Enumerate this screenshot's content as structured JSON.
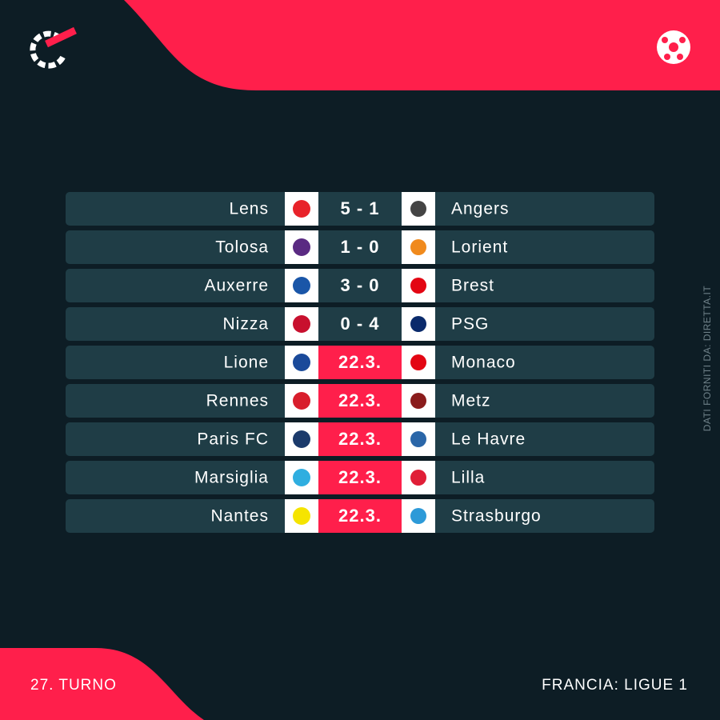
{
  "header": {
    "credit": "DATI FORNITI DA: DIRETTA.IT"
  },
  "matches": [
    {
      "home": "Lens",
      "score": "5 - 1",
      "away": "Angers"
    },
    {
      "home": "Tolosa",
      "score": "1 - 0",
      "away": "Lorient"
    },
    {
      "home": "Auxerre",
      "score": "3 - 0",
      "away": "Brest"
    },
    {
      "home": "Nizza",
      "score": "0 - 4",
      "away": "PSG"
    },
    {
      "home": "Lione",
      "date": "22.3.",
      "away": "Monaco"
    },
    {
      "home": "Rennes",
      "date": "22.3.",
      "away": "Metz"
    },
    {
      "home": "Paris FC",
      "date": "22.3.",
      "away": "Le Havre"
    },
    {
      "home": "Marsiglia",
      "date": "22.3.",
      "away": "Lilla"
    },
    {
      "home": "Nantes",
      "date": "22.3.",
      "away": "Strasburgo"
    }
  ],
  "footer": {
    "round": "27. TURNO",
    "league": "FRANCIA: LIGUE 1"
  }
}
